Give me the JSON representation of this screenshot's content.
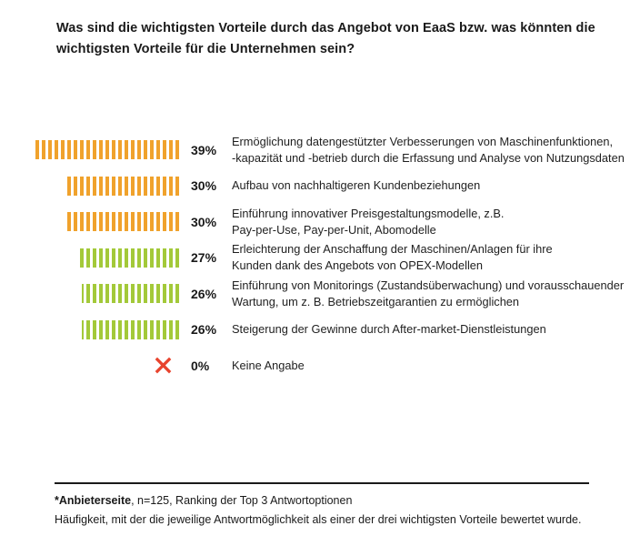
{
  "title": "Was sind die wichtigsten Vorteile durch das Angebot von EaaS bzw. was könnten die\nwichtigsten Vorteile für die Unternehmen sein?",
  "colors": {
    "orange": "#F0A22C",
    "green": "#A3C939",
    "red_x": "#E8432D",
    "text": "#1A1A1A"
  },
  "chart_data": {
    "type": "bar",
    "orientation": "horizontal",
    "value_unit": "%",
    "title": "Was sind die wichtigsten Vorteile durch das Angebot von EaaS bzw. was könnten die wichtigsten Vorteile für die Unternehmen sein?",
    "values": [
      39,
      30,
      30,
      27,
      26,
      26,
      0
    ],
    "xlim": [
      0,
      40
    ],
    "legend": "none",
    "grid": false,
    "rows": [
      {
        "value": 39,
        "value_label": "39%",
        "color": "#F0A22C",
        "color_name": "orange",
        "label": "Ermöglichung datengestützter Verbesserungen von Maschinenfunktionen,\n-kapazität und -betrieb durch die Erfassung und Analyse von Nutzungsdaten"
      },
      {
        "value": 30,
        "value_label": "30%",
        "color": "#F0A22C",
        "color_name": "orange",
        "label": "Aufbau von nachhaltigeren Kundenbeziehungen"
      },
      {
        "value": 30,
        "value_label": "30%",
        "color": "#F0A22C",
        "color_name": "orange",
        "label": "Einführung innovativer Preisgestaltungsmodelle, z.B.\nPay-per-Use, Pay-per-Unit, Abomodelle"
      },
      {
        "value": 27,
        "value_label": "27%",
        "color": "#A3C939",
        "color_name": "green",
        "label": "Erleichterung der Anschaffung der Maschinen/Anlagen für ihre\nKunden dank des Angebots von OPEX-Modellen"
      },
      {
        "value": 26,
        "value_label": "26%",
        "color": "#A3C939",
        "color_name": "green",
        "label": "Einführung von Monitorings (Zustandsüberwachung) und vorausschauender\nWartung, um z. B. Betriebszeitgarantien zu ermöglichen"
      },
      {
        "value": 26,
        "value_label": "26%",
        "color": "#A3C939",
        "color_name": "green",
        "label": "Steigerung der Gewinne durch After-market-Dienstleistungen"
      },
      {
        "value": 0,
        "value_label": "0%",
        "color": "#E8432D",
        "color_name": "red",
        "marker": "x-icon",
        "label": "Keine Angabe"
      }
    ]
  },
  "footer": {
    "source_bold": "*Anbieterseite",
    "source_rest": ", n=125, Ranking der Top 3 Antwortoptionen",
    "line2": "Häufigkeit, mit der die jeweilige Antwortmöglichkeit als einer der drei wichtigsten Vorteile bewertet wurde."
  }
}
